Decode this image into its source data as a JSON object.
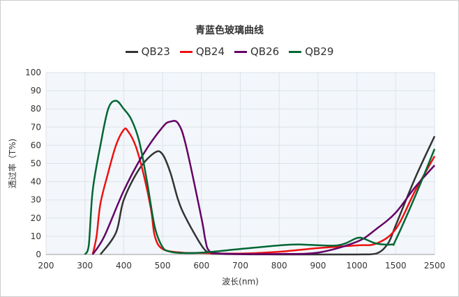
{
  "chart_data": {
    "type": "line",
    "title": "青蓝色玻璃曲线",
    "xlabel": "波长(nm)",
    "ylabel": "透过率（T%)",
    "xticks": [
      "200",
      "300",
      "400",
      "500",
      "600",
      "700",
      "800",
      "900",
      "1000",
      "1500",
      "2500"
    ],
    "yticks": [
      "0",
      "10",
      "20",
      "30",
      "40",
      "50",
      "60",
      "70",
      "80",
      "90",
      "100"
    ],
    "ylim": [
      0,
      100
    ],
    "grid": true,
    "legend": "top",
    "series": [
      {
        "name": "QB23",
        "color": "#333333",
        "x": [
          340,
          380,
          400,
          440,
          480,
          500,
          520,
          540,
          560,
          600,
          620,
          650,
          800,
          1000,
          1250,
          1400,
          1500,
          2000,
          2500
        ],
        "y": [
          0,
          12,
          30,
          47,
          56,
          55,
          45,
          30,
          20,
          5,
          1,
          0.3,
          0,
          0,
          0.5,
          6,
          16,
          42,
          65
        ]
      },
      {
        "name": "QB24",
        "color": "#ee1111",
        "x": [
          320,
          330,
          340,
          360,
          380,
          400,
          410,
          430,
          450,
          470,
          480,
          500,
          550,
          600,
          700,
          800,
          900,
          1000,
          1250,
          1500,
          2000,
          2500
        ],
        "y": [
          0,
          10,
          28,
          45,
          60,
          68.5,
          68,
          60,
          45,
          25,
          10,
          3,
          1,
          0.8,
          0.5,
          1.5,
          3.5,
          5,
          6,
          14,
          35,
          54
        ]
      },
      {
        "name": "QB26",
        "color": "#660066",
        "x": [
          320,
          350,
          400,
          450,
          500,
          520,
          540,
          560,
          600,
          610,
          620,
          650,
          800,
          900,
          1000,
          1250,
          1500,
          2000,
          2500
        ],
        "y": [
          0,
          10,
          35,
          55,
          70,
          73,
          72,
          60,
          20,
          8,
          2,
          0.5,
          0.3,
          1,
          7,
          14,
          23,
          37,
          49
        ]
      },
      {
        "name": "QB29",
        "color": "#006633",
        "x": [
          300,
          310,
          320,
          340,
          360,
          380,
          400,
          420,
          440,
          460,
          480,
          500,
          520,
          550,
          600,
          700,
          800,
          850,
          950,
          1000,
          1100,
          1250,
          1450,
          1500,
          2000,
          2500
        ],
        "y": [
          0,
          5,
          35,
          60,
          80,
          84.5,
          80,
          74,
          62,
          40,
          15,
          4,
          1.5,
          0.8,
          1,
          3,
          5,
          5.5,
          5,
          9,
          8.5,
          6,
          5.5,
          8,
          32,
          58
        ]
      }
    ]
  }
}
